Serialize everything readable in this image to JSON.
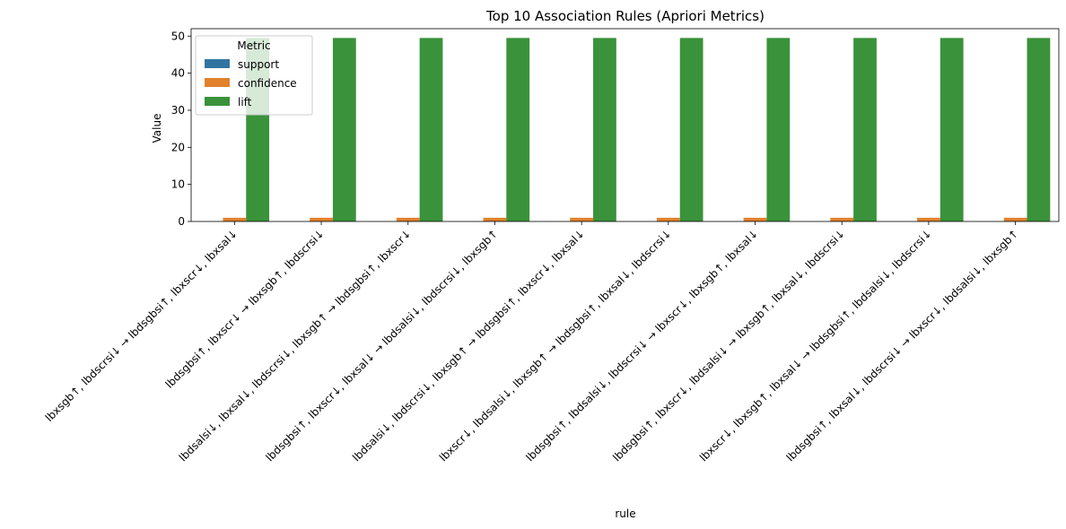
{
  "chart_data": {
    "type": "bar",
    "title": "Top 10 Association Rules (Apriori Metrics)",
    "xlabel": "rule",
    "ylabel": "Value",
    "ylim": [
      0,
      52
    ],
    "yticks": [
      0,
      10,
      20,
      30,
      40,
      50
    ],
    "grid": false,
    "legend": {
      "title": "Metric",
      "placement": "top-left"
    },
    "categories": [
      "lbxsgb↑, lbdscrsi↓ → lbdsgbsi↑, lbxscr↓, lbxsal↓",
      "lbdsgbsi↑, lbxscr↓ → lbxsgb↑, lbdscrsi↓",
      "lbdsalsi↓, lbxsal↓, lbdscrsi↓, lbxsgb↑ → lbdsgbsi↑, lbxscr↓",
      "lbdsgbsi↑, lbxscr↓, lbxsal↓ → lbdsalsi↓, lbdscrsi↓, lbxsgb↑",
      "lbdsalsi↓, lbdscrsi↓, lbxsgb↑ → lbdsgbsi↑, lbxscr↓, lbxsal↓",
      "lbxscr↓, lbdsalsi↓, lbxsgb↑ → lbdsgbsi↑, lbxsal↓, lbdscrsi↓",
      "lbdsgbsi↑, lbdsalsi↓, lbdscrsi↓ → lbxscr↓, lbxsgb↑, lbxsal↓",
      "lbdsgbsi↑, lbxscr↓, lbdsalsi↓ → lbxsgb↑, lbxsal↓, lbdscrsi↓",
      "lbxscr↓, lbxsgb↑, lbxsal↓ → lbdsgbsi↑, lbdsalsi↓, lbdscrsi↓",
      "lbdsgbsi↑, lbxsal↓, lbdscrsi↓ → lbxscr↓, lbdsalsi↓, lbxsgb↑"
    ],
    "series": [
      {
        "name": "support",
        "color": "#3274a1",
        "values": [
          0.02,
          0.02,
          0.02,
          0.02,
          0.02,
          0.02,
          0.02,
          0.02,
          0.02,
          0.02
        ]
      },
      {
        "name": "confidence",
        "color": "#e1812c",
        "values": [
          1.0,
          1.0,
          1.0,
          1.0,
          1.0,
          1.0,
          1.0,
          1.0,
          1.0,
          1.0
        ]
      },
      {
        "name": "lift",
        "color": "#3a923a",
        "values": [
          49.5,
          49.5,
          49.5,
          49.5,
          49.5,
          49.5,
          49.5,
          49.5,
          49.5,
          49.5
        ]
      }
    ]
  }
}
